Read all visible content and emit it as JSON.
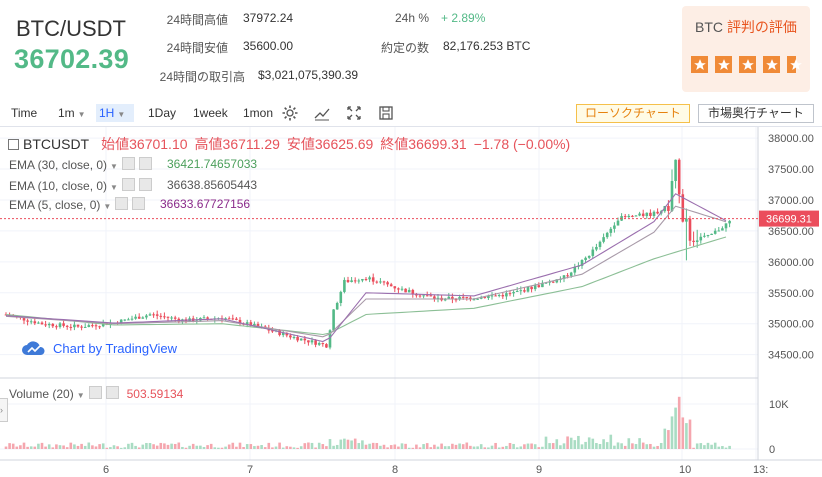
{
  "header": {
    "pair": "BTC/USDT",
    "last_price": "36702.39",
    "stats": [
      {
        "label": "24時間高値",
        "value": "37972.24"
      },
      {
        "label": "24時間安値",
        "value": "35600.00"
      },
      {
        "label": "24時間の取引高",
        "value": "$3,021,075,390.39"
      },
      {
        "label": "24h %",
        "value": "+ 2.89%"
      },
      {
        "label": "約定の数",
        "value": "82,176.253 BTC"
      }
    ],
    "rating": {
      "prefix": "BTC",
      "title": "評判の評価",
      "stars": 4.5
    }
  },
  "toolbar": {
    "time_label": "Time",
    "intervals": [
      "1m",
      "1H",
      "1Day",
      "1week",
      "1mon"
    ],
    "active_interval": "1H",
    "icons": [
      "gear-icon",
      "line-chart-icon",
      "fullscreen-icon",
      "save-icon"
    ],
    "candle_button": "ローソクチャート",
    "depth_button": "市場奥行チャート"
  },
  "legend": {
    "symbol": "BTCUSDT",
    "open_label": "始値",
    "open": "36701.10",
    "high_label": "高値",
    "high": "36711.29",
    "low_label": "安値",
    "low": "36625.69",
    "close_label": "終値",
    "close": "36699.31",
    "change": "−1.78 (−0.00%)",
    "emas": [
      {
        "label": "EMA (30, close, 0)",
        "value": "36421.74657033",
        "color": "#4a9e5c"
      },
      {
        "label": "EMA (10, close, 0)",
        "value": "36638.85605443",
        "color": "#555555"
      },
      {
        "label": "EMA (5, close, 0)",
        "value": "36633.67727156",
        "color": "#8a2a8a"
      }
    ]
  },
  "volume_legend": {
    "label": "Volume (20)",
    "value": "503.59134"
  },
  "watermark": "Chart by TradingView",
  "colors": {
    "up": "#53b987",
    "down": "#eb4d5c",
    "vol_up": "#a9dcc3",
    "vol_down": "#f5a6ae",
    "ema30": "#8cbf96",
    "ema10": "#a89aa8",
    "ema5": "#9b6fae"
  },
  "chart_data": {
    "type": "candlestick",
    "price_axis": {
      "ticks": [
        34500,
        35000,
        35500,
        36000,
        36500,
        37000,
        37500,
        38000
      ],
      "range": [
        34220,
        38050
      ]
    },
    "volume_axis": {
      "ticks": [
        "0",
        "10K"
      ],
      "range": [
        0,
        12000
      ]
    },
    "x_ticks": [
      "6",
      "7",
      "8",
      "9",
      "10",
      "13:"
    ],
    "last_price_label": "36699.31",
    "seed": 7,
    "anchors": [
      [
        0,
        35150
      ],
      [
        10,
        35000
      ],
      [
        20,
        34950
      ],
      [
        30,
        35020
      ],
      [
        40,
        35150
      ],
      [
        50,
        35050
      ],
      [
        60,
        35100
      ],
      [
        70,
        34950
      ],
      [
        80,
        34780
      ],
      [
        89,
        34650
      ],
      [
        91,
        35200
      ],
      [
        94,
        35680
      ],
      [
        100,
        35750
      ],
      [
        110,
        35550
      ],
      [
        120,
        35400
      ],
      [
        130,
        35420
      ],
      [
        140,
        35480
      ],
      [
        148,
        35620
      ],
      [
        155,
        35750
      ],
      [
        160,
        36000
      ],
      [
        165,
        36300
      ],
      [
        170,
        36700
      ],
      [
        180,
        36780
      ],
      [
        184,
        36900
      ],
      [
        186,
        37650
      ],
      [
        187,
        37050
      ],
      [
        190,
        36400
      ],
      [
        195,
        36400
      ],
      [
        201,
        36650
      ]
    ],
    "ema30": [
      [
        0,
        35150
      ],
      [
        30,
        34980
      ],
      [
        60,
        35000
      ],
      [
        89,
        34820
      ],
      [
        100,
        35150
      ],
      [
        130,
        35250
      ],
      [
        160,
        35600
      ],
      [
        180,
        36050
      ],
      [
        201,
        36420
      ]
    ],
    "ema10": [
      [
        0,
        35120
      ],
      [
        30,
        35000
      ],
      [
        60,
        35050
      ],
      [
        89,
        34780
      ],
      [
        100,
        35400
      ],
      [
        130,
        35400
      ],
      [
        160,
        35800
      ],
      [
        180,
        36480
      ],
      [
        186,
        36900
      ],
      [
        201,
        36630
      ]
    ],
    "ema5": [
      [
        0,
        35130
      ],
      [
        30,
        35010
      ],
      [
        60,
        35080
      ],
      [
        89,
        34700
      ],
      [
        100,
        35500
      ],
      [
        130,
        35450
      ],
      [
        160,
        35950
      ],
      [
        180,
        36650
      ],
      [
        186,
        37100
      ],
      [
        201,
        36635
      ]
    ]
  }
}
